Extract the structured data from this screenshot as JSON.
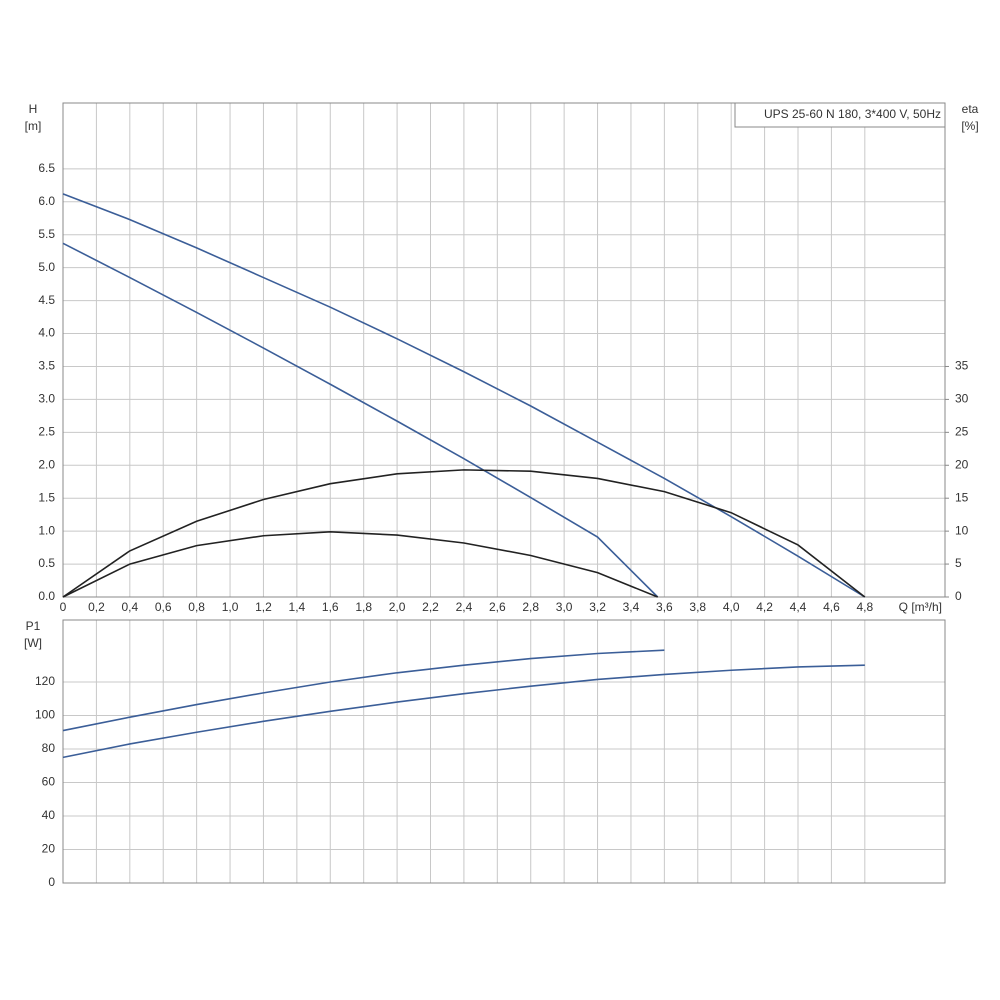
{
  "chart_data": [
    {
      "type": "line",
      "title": "UPS 25-60 N 180, 3*400 V, 50Hz",
      "ylabel": "H",
      "ylabel_unit": "[m]",
      "y2label": "eta",
      "y2label_unit": "[%]",
      "xlabel": "Q [m³/h]",
      "xlim": [
        0,
        5.28
      ],
      "ylim": [
        0,
        7.5
      ],
      "y2lim": [
        0,
        75
      ],
      "grid": true,
      "show_xtick_labels": true,
      "xticks": [
        0,
        {
          "value": 0.2,
          "label": "0,2"
        },
        {
          "value": 0.4,
          "label": "0,4"
        },
        {
          "value": 0.6,
          "label": "0,6"
        },
        {
          "value": 0.8,
          "label": "0,8"
        },
        {
          "value": 1.0,
          "label": "1,0"
        },
        {
          "value": 1.2,
          "label": "1,2"
        },
        {
          "value": 1.4,
          "label": "1,4"
        },
        {
          "value": 1.6,
          "label": "1,6"
        },
        {
          "value": 1.8,
          "label": "1,8"
        },
        {
          "value": 2.0,
          "label": "2,0"
        },
        {
          "value": 2.2,
          "label": "2,2"
        },
        {
          "value": 2.4,
          "label": "2,4"
        },
        {
          "value": 2.6,
          "label": "2,6"
        },
        {
          "value": 2.8,
          "label": "2,8"
        },
        {
          "value": 3.0,
          "label": "3,0"
        },
        {
          "value": 3.2,
          "label": "3,2"
        },
        {
          "value": 3.4,
          "label": "3,4"
        },
        {
          "value": 3.6,
          "label": "3,6"
        },
        {
          "value": 3.8,
          "label": "3,8"
        },
        {
          "value": 4.0,
          "label": "4,0"
        },
        {
          "value": 4.2,
          "label": "4,2"
        },
        {
          "value": 4.4,
          "label": "4,4"
        },
        {
          "value": 4.6,
          "label": "4,6"
        },
        {
          "value": 4.8,
          "label": "4,8"
        }
      ],
      "yticks": [
        {
          "value": 0,
          "label": "0.0"
        },
        0.5,
        {
          "value": 1,
          "label": "1.0"
        },
        1.5,
        {
          "value": 2,
          "label": "2.0"
        },
        2.5,
        {
          "value": 3,
          "label": "3.0"
        },
        3.5,
        {
          "value": 4,
          "label": "4.0"
        },
        4.5,
        {
          "value": 5,
          "label": "5.0"
        },
        5.5,
        {
          "value": 6,
          "label": "6.0"
        },
        6.5
      ],
      "y2ticks": [
        0,
        5,
        10,
        15,
        20,
        25,
        30,
        35
      ],
      "series": [
        {
          "color": "#3b5e98",
          "x": [
            0,
            0.4,
            0.8,
            1.2,
            1.6,
            2.0,
            2.4,
            2.8,
            3.2,
            3.6,
            4.0,
            4.4,
            4.8
          ],
          "values": [
            6.12,
            5.73,
            5.3,
            4.85,
            4.4,
            3.92,
            3.42,
            2.9,
            2.35,
            1.8,
            1.22,
            0.62,
            0
          ]
        },
        {
          "color": "#3b5e98",
          "x": [
            0,
            0.4,
            0.8,
            1.2,
            1.6,
            2.0,
            2.4,
            2.8,
            3.2,
            3.56
          ],
          "values": [
            5.37,
            4.85,
            4.32,
            3.78,
            3.23,
            2.67,
            2.1,
            1.51,
            0.91,
            0
          ]
        },
        {
          "color": "#222222",
          "axis": "y2",
          "x": [
            0,
            0.4,
            0.8,
            1.2,
            1.6,
            2.0,
            2.4,
            2.8,
            3.2,
            3.6,
            4.0,
            4.4,
            4.8
          ],
          "values": [
            0,
            7,
            11.5,
            14.8,
            17.2,
            18.7,
            19.3,
            19.1,
            18,
            16,
            12.8,
            7.9,
            0
          ]
        },
        {
          "color": "#222222",
          "axis": "y2",
          "x": [
            0,
            0.4,
            0.8,
            1.2,
            1.6,
            2.0,
            2.4,
            2.8,
            3.2,
            3.56
          ],
          "values": [
            0,
            5,
            7.8,
            9.3,
            9.9,
            9.4,
            8.2,
            6.3,
            3.7,
            0
          ]
        }
      ]
    },
    {
      "type": "line",
      "ylabel": "P1",
      "ylabel_unit": "[W]",
      "xlim": [
        0,
        5.28
      ],
      "ylim": [
        0,
        157
      ],
      "grid": true,
      "show_xtick_labels": false,
      "xticks": [
        0,
        0.2,
        0.4,
        0.6,
        0.8,
        1.0,
        1.2,
        1.4,
        1.6,
        1.8,
        2.0,
        2.2,
        2.4,
        2.6,
        2.8,
        3.0,
        3.2,
        3.4,
        3.6,
        3.8,
        4.0,
        4.2,
        4.4,
        4.6,
        4.8
      ],
      "yticks": [
        0,
        20,
        40,
        60,
        80,
        100,
        120
      ],
      "series": [
        {
          "color": "#3b5e98",
          "x": [
            0,
            0.4,
            0.8,
            1.2,
            1.6,
            2.0,
            2.4,
            2.8,
            3.2,
            3.6
          ],
          "values": [
            91,
            99,
            106.5,
            113.5,
            120,
            125.5,
            130,
            134,
            137,
            139
          ]
        },
        {
          "color": "#3b5e98",
          "x": [
            0,
            0.4,
            0.8,
            1.2,
            1.6,
            2.0,
            2.4,
            2.8,
            3.2,
            3.6,
            4.0,
            4.4,
            4.8
          ],
          "values": [
            75,
            83,
            90,
            96.5,
            102.5,
            108,
            113,
            117.5,
            121.5,
            124.5,
            127,
            129,
            130
          ]
        }
      ]
    }
  ]
}
